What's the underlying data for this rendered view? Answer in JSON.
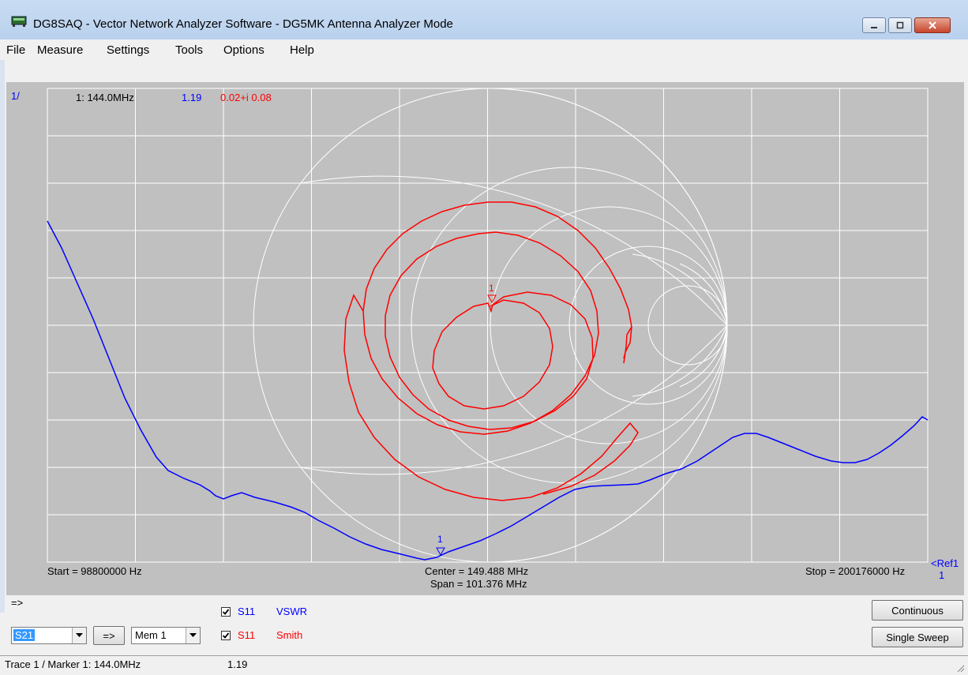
{
  "window": {
    "title": "DG8SAQ  -  Vector Network Analyzer Software - DG5MK Antenna Analyzer Mode",
    "app_icon": "vna-device-icon",
    "controls": [
      "minimize-icon",
      "maximize-icon",
      "close-icon"
    ]
  },
  "menu": [
    "File",
    "Measure",
    "Settings",
    "Tools",
    "Options",
    "Help"
  ],
  "plot": {
    "corner_label": "1/",
    "marker_readout": {
      "label": "1:  144.0MHz",
      "vswr": "1.19",
      "impedance": "0.02+i 0.08"
    },
    "start": "Start = 98800000 Hz",
    "center": "Center = 149.488 MHz",
    "span": "Span = 101.376 MHz",
    "stop": "Stop = 200176000 Hz",
    "ref_label": "<Ref1",
    "ref_value": "1",
    "marker_tag": "1",
    "colors": {
      "background": "#c0c0c0",
      "grid": "#ffffff",
      "vswr": "#0000ff",
      "smith": "#ff0000"
    }
  },
  "chart_data": {
    "type": "line",
    "x_start_hz": 98800000,
    "x_stop_hz": 200176000,
    "x_center_mhz": 149.488,
    "span_mhz": 101.376,
    "series": [
      {
        "name": "VSWR",
        "trace": "S11",
        "format": "rectangular"
      },
      {
        "name": "Smith",
        "trace": "S11",
        "format": "smith"
      }
    ],
    "marker": {
      "id": "1",
      "freq": "144.0MHz",
      "vswr": 1.19,
      "impedance": "0.02+i 0.08"
    }
  },
  "controls": {
    "arrow_label": "=>",
    "trace_select": "S21",
    "copy_button": "=>",
    "memory_select": "Mem 1",
    "trace1": {
      "checked": true,
      "param": "S11",
      "format": "VSWR"
    },
    "trace2": {
      "checked": true,
      "param": "S11",
      "format": "Smith"
    },
    "continuous_button": "Continuous",
    "single_sweep_button": "Single Sweep"
  },
  "status": {
    "trace_marker": "Trace 1 / Marker 1:  144.0MHz",
    "value": "1.19"
  }
}
